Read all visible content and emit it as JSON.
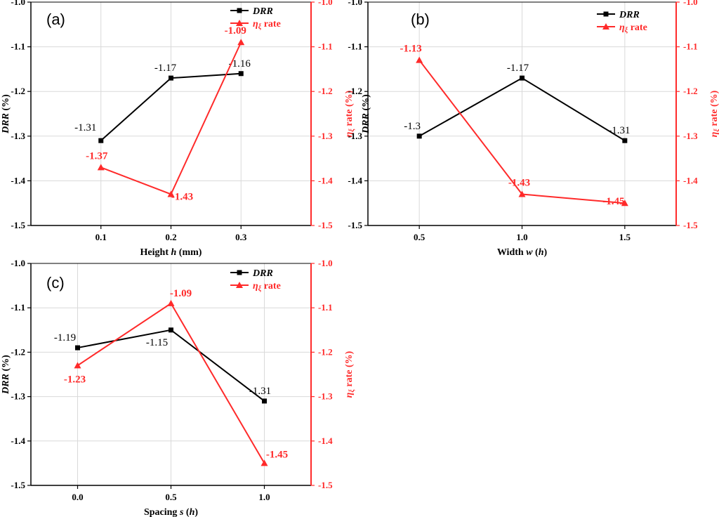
{
  "colors": {
    "black_series": "#000000",
    "red_series": "#ff2a2a",
    "grid": "#d9d9d9"
  },
  "chart_data": [
    {
      "type": "line",
      "panel_label": "(a)",
      "xlabel": "Height h (mm)",
      "xlabel_parts": [
        "Height ",
        "h",
        " (mm)"
      ],
      "ylabel_left": "DRR (%)",
      "ylabel_left_parts": [
        "DRR",
        " (%)"
      ],
      "ylabel_right": "ηξ rate (%)",
      "ylabel_right_parts": [
        "η",
        "ξ",
        " rate (%)"
      ],
      "x_tick_labels": [
        "0.1",
        "0.2",
        "0.3"
      ],
      "x_values": [
        0.1,
        0.2,
        0.3
      ],
      "xlim": [
        0.0,
        0.4
      ],
      "ylim_left": [
        -1.5,
        -1.0
      ],
      "ylim_right": [
        -1.5,
        -1.0
      ],
      "y_tick_labels": [
        "-1.0",
        "-1.1",
        "-1.2",
        "-1.3",
        "-1.4",
        "-1.5"
      ],
      "grid": true,
      "legend_position": "top-right",
      "series": [
        {
          "name": "DRR",
          "axis": "left",
          "marker": "square",
          "values": [
            -1.31,
            -1.17,
            -1.16
          ],
          "labels": [
            "-1.31",
            "-1.17",
            "-1.16"
          ]
        },
        {
          "name": "ηξ rate",
          "name_parts": [
            "η",
            "ξ",
            " rate"
          ],
          "axis": "right",
          "marker": "triangle",
          "values": [
            -1.37,
            -1.43,
            -1.09
          ],
          "labels": [
            "-1.37",
            "-1.43",
            "-1.09"
          ]
        }
      ]
    },
    {
      "type": "line",
      "panel_label": "(b)",
      "xlabel": "Width w (h)",
      "xlabel_parts": [
        "Width ",
        "w",
        " (",
        "h",
        ")"
      ],
      "ylabel_left": "DRR (%)",
      "ylabel_left_parts": [
        "DRR",
        " (%)"
      ],
      "ylabel_right": "ηξ rate (%)",
      "ylabel_right_parts": [
        "η",
        "ξ",
        " rate (%)"
      ],
      "x_tick_labels": [
        "0.5",
        "1.0",
        "1.5"
      ],
      "x_values": [
        0.5,
        1.0,
        1.5
      ],
      "xlim": [
        0.25,
        1.75
      ],
      "ylim_left": [
        -1.5,
        -1.0
      ],
      "ylim_right": [
        -1.5,
        -1.0
      ],
      "y_tick_labels": [
        "-1.0",
        "-1.1",
        "-1.2",
        "-1.3",
        "-1.4",
        "-1.5"
      ],
      "grid": true,
      "legend_position": "top-right",
      "series": [
        {
          "name": "DRR",
          "axis": "left",
          "marker": "square",
          "values": [
            -1.3,
            -1.17,
            -1.31
          ],
          "labels": [
            "-1.3",
            "-1.17",
            "-1.31"
          ]
        },
        {
          "name": "ηξ rate",
          "name_parts": [
            "η",
            "ξ",
            " rate"
          ],
          "axis": "right",
          "marker": "triangle",
          "values": [
            -1.13,
            -1.43,
            -1.45
          ],
          "labels": [
            "-1.13",
            "-1.43",
            "-1.45"
          ]
        }
      ]
    },
    {
      "type": "line",
      "panel_label": "(c)",
      "xlabel": "Spacing s (h)",
      "xlabel_parts": [
        "Spacing ",
        "s",
        " (",
        "h",
        ")"
      ],
      "ylabel_left": "DRR (%)",
      "ylabel_left_parts": [
        "DRR",
        " (%)"
      ],
      "ylabel_right": "ηξ rate (%)",
      "ylabel_right_parts": [
        "η",
        "ξ",
        " rate (%)"
      ],
      "x_tick_labels": [
        "0.0",
        "0.5",
        "1.0"
      ],
      "x_values": [
        0.0,
        0.5,
        1.0
      ],
      "xlim": [
        -0.25,
        1.25
      ],
      "ylim_left": [
        -1.5,
        -1.0
      ],
      "ylim_right": [
        -1.5,
        -1.0
      ],
      "y_tick_labels": [
        "-1.0",
        "-1.1",
        "-1.2",
        "-1.3",
        "-1.4",
        "-1.5"
      ],
      "grid": true,
      "legend_position": "top-right",
      "series": [
        {
          "name": "DRR",
          "axis": "left",
          "marker": "square",
          "values": [
            -1.19,
            -1.15,
            -1.31
          ],
          "labels": [
            "-1.19",
            "-1.15",
            "-1.31"
          ]
        },
        {
          "name": "ηξ rate",
          "name_parts": [
            "η",
            "ξ",
            " rate"
          ],
          "axis": "right",
          "marker": "triangle",
          "values": [
            -1.23,
            -1.09,
            -1.45
          ],
          "labels": [
            "-1.23",
            "-1.09",
            "-1.45"
          ]
        }
      ]
    }
  ]
}
